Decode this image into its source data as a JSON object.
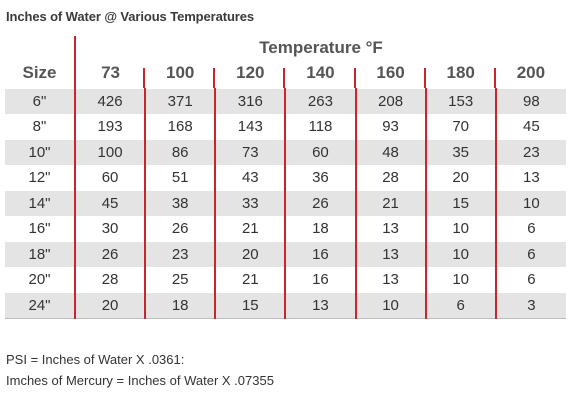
{
  "title": "Inches of Water @ Various Temperatures",
  "table": {
    "group_header": "Temperature °F",
    "size_header": "Size",
    "temps": [
      "73",
      "100",
      "120",
      "140",
      "160",
      "180",
      "200"
    ],
    "rows": [
      {
        "size": "6\"",
        "values": [
          "426",
          "371",
          "316",
          "263",
          "208",
          "153",
          "98"
        ]
      },
      {
        "size": "8\"",
        "values": [
          "193",
          "168",
          "143",
          "118",
          "93",
          "70",
          "45"
        ]
      },
      {
        "size": "10\"",
        "values": [
          "100",
          "86",
          "73",
          "60",
          "48",
          "35",
          "23"
        ]
      },
      {
        "size": "12\"",
        "values": [
          "60",
          "51",
          "43",
          "36",
          "28",
          "20",
          "13"
        ]
      },
      {
        "size": "14\"",
        "values": [
          "45",
          "38",
          "33",
          "26",
          "21",
          "15",
          "10"
        ]
      },
      {
        "size": "16\"",
        "values": [
          "30",
          "26",
          "21",
          "18",
          "13",
          "10",
          "6"
        ]
      },
      {
        "size": "18\"",
        "values": [
          "26",
          "23",
          "20",
          "16",
          "13",
          "10",
          "6"
        ]
      },
      {
        "size": "20\"",
        "values": [
          "28",
          "25",
          "21",
          "16",
          "13",
          "10",
          "6"
        ]
      },
      {
        "size": "24\"",
        "values": [
          "20",
          "18",
          "15",
          "13",
          "10",
          "6",
          "3"
        ]
      }
    ]
  },
  "notes": [
    "PSI = Inches of Water X .0361:",
    "Imches of Mercury = Inches of Water X .07355"
  ],
  "colors": {
    "divider": "#c8252c",
    "stripe": "#e4e4e4"
  }
}
